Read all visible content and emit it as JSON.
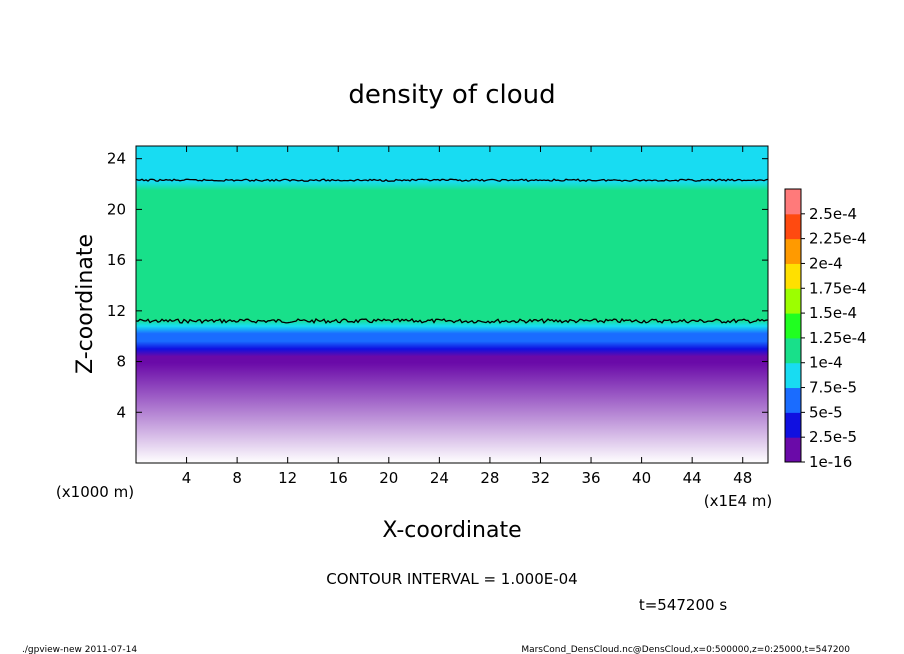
{
  "chart_data": {
    "type": "heatmap",
    "title": "density of cloud",
    "xlabel": "X-coordinate",
    "ylabel": "Z-coordinate",
    "x_unit": "(x1E4 m)",
    "y_unit": "(x1000 m)",
    "xlim": [
      0,
      50
    ],
    "ylim": [
      0,
      25
    ],
    "x_ticks": [
      4,
      8,
      12,
      16,
      20,
      24,
      28,
      32,
      36,
      40,
      44,
      48
    ],
    "y_ticks": [
      4,
      8,
      12,
      16,
      20,
      24
    ],
    "colorbar": {
      "levels": [
        "1e-16",
        "2.5e-5",
        "5e-5",
        "7.5e-5",
        "1e-4",
        "1.25e-4",
        "1.5e-4",
        "1.75e-4",
        "2e-4",
        "2.25e-4",
        "2.5e-4"
      ],
      "colors": [
        "#6a0aa8",
        "#1010e0",
        "#1a6cff",
        "#18dcf2",
        "#18e08a",
        "#20ff20",
        "#9cff00",
        "#ffe000",
        "#ff9a00",
        "#ff4a10",
        "#ff7a7a"
      ]
    },
    "profile": {
      "z": [
        0,
        7.9,
        8.4,
        9.0,
        9.6,
        10.2,
        10.8,
        11.3,
        12.5,
        14,
        16,
        18,
        20,
        21.5,
        22.2,
        23,
        24,
        25
      ],
      "density": [
        0,
        1e-16,
        2e-05,
        3.5e-05,
        5.5e-05,
        7e-05,
        8.5e-05,
        0.0001,
        0.00011,
        0.000115,
        0.000118,
        0.000115,
        0.00011,
        0.0001,
        9.5e-05,
        8.5e-05,
        7.8e-05,
        7.5e-05
      ]
    },
    "contour_levels_km": [
      11.2,
      22.3
    ]
  },
  "annotations": {
    "contour_interval": "CONTOUR INTERVAL = 1.000E-04",
    "time": "t=547200 s",
    "footer_left": "./gpview-new 2011-07-14",
    "footer_right": "MarsCond_DensCloud.nc@DensCloud,x=0:500000,z=0:25000,t=547200"
  }
}
